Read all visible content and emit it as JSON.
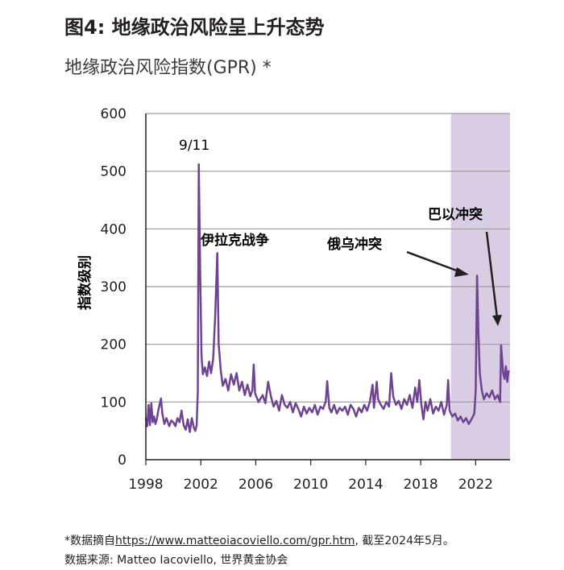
{
  "header": {
    "title": "图4: 地缘政治风险呈上升态势",
    "subtitle": "地缘政治风险指数(GPR) *"
  },
  "footer": {
    "note_prefix": "*数据摘自",
    "note_link": "https://www.matteoiacoviello.com/gpr.htm",
    "note_suffix": ", 截至2024年5月。",
    "source": "数据来源: Matteo Iacoviello, 世界黄金协会"
  },
  "colors": {
    "line": "#6e4391",
    "shade": "#d9cde3",
    "grid": "#9a9a9a",
    "axis": "#231f20",
    "text": "#231f20"
  },
  "chart_data": {
    "type": "line",
    "ylabel": "指数级别",
    "xlabel": "",
    "xlim": [
      1998,
      2024.5
    ],
    "ylim": [
      0,
      600
    ],
    "yticks": [
      0,
      100,
      200,
      300,
      400,
      500,
      600
    ],
    "xticks": [
      1998,
      2002,
      2006,
      2010,
      2014,
      2018,
      2022
    ],
    "grid": "horizontal",
    "shaded_region": [
      2020.2,
      2024.5
    ],
    "series": [
      {
        "values": [
          [
            1998.0,
            72
          ],
          [
            1998.1,
            58
          ],
          [
            1998.2,
            95
          ],
          [
            1998.3,
            60
          ],
          [
            1998.4,
            98
          ],
          [
            1998.5,
            65
          ],
          [
            1998.6,
            75
          ],
          [
            1998.7,
            62
          ],
          [
            1998.8,
            70
          ],
          [
            1998.9,
            85
          ],
          [
            1999.1,
            106
          ],
          [
            1999.2,
            80
          ],
          [
            1999.35,
            62
          ],
          [
            1999.5,
            72
          ],
          [
            1999.7,
            58
          ],
          [
            1999.85,
            68
          ],
          [
            2000.0,
            65
          ],
          [
            2000.15,
            58
          ],
          [
            2000.3,
            72
          ],
          [
            2000.45,
            65
          ],
          [
            2000.6,
            85
          ],
          [
            2000.75,
            60
          ],
          [
            2000.9,
            52
          ],
          [
            2001.05,
            70
          ],
          [
            2001.2,
            48
          ],
          [
            2001.35,
            72
          ],
          [
            2001.5,
            55
          ],
          [
            2001.6,
            50
          ],
          [
            2001.7,
            60
          ],
          [
            2001.78,
            118
          ],
          [
            2001.85,
            512
          ],
          [
            2001.95,
            330
          ],
          [
            2002.05,
            180
          ],
          [
            2002.15,
            148
          ],
          [
            2002.3,
            160
          ],
          [
            2002.45,
            145
          ],
          [
            2002.6,
            170
          ],
          [
            2002.75,
            150
          ],
          [
            2002.9,
            175
          ],
          [
            2003.05,
            250
          ],
          [
            2003.2,
            358
          ],
          [
            2003.3,
            200
          ],
          [
            2003.45,
            155
          ],
          [
            2003.6,
            128
          ],
          [
            2003.8,
            140
          ],
          [
            2004.0,
            120
          ],
          [
            2004.2,
            148
          ],
          [
            2004.4,
            130
          ],
          [
            2004.6,
            150
          ],
          [
            2004.8,
            120
          ],
          [
            2005.0,
            135
          ],
          [
            2005.2,
            112
          ],
          [
            2005.4,
            130
          ],
          [
            2005.6,
            110
          ],
          [
            2005.75,
            120
          ],
          [
            2005.85,
            165
          ],
          [
            2005.95,
            115
          ],
          [
            2006.2,
            100
          ],
          [
            2006.5,
            112
          ],
          [
            2006.7,
            98
          ],
          [
            2006.9,
            135
          ],
          [
            2007.1,
            110
          ],
          [
            2007.3,
            92
          ],
          [
            2007.5,
            102
          ],
          [
            2007.7,
            85
          ],
          [
            2007.9,
            112
          ],
          [
            2008.1,
            95
          ],
          [
            2008.3,
            90
          ],
          [
            2008.5,
            100
          ],
          [
            2008.7,
            82
          ],
          [
            2008.9,
            98
          ],
          [
            2009.1,
            88
          ],
          [
            2009.3,
            75
          ],
          [
            2009.5,
            92
          ],
          [
            2009.7,
            80
          ],
          [
            2009.9,
            90
          ],
          [
            2010.1,
            82
          ],
          [
            2010.3,
            95
          ],
          [
            2010.5,
            78
          ],
          [
            2010.7,
            92
          ],
          [
            2010.9,
            88
          ],
          [
            2011.1,
            102
          ],
          [
            2011.2,
            136
          ],
          [
            2011.35,
            90
          ],
          [
            2011.5,
            82
          ],
          [
            2011.7,
            95
          ],
          [
            2011.9,
            80
          ],
          [
            2012.1,
            90
          ],
          [
            2012.3,
            85
          ],
          [
            2012.5,
            92
          ],
          [
            2012.7,
            78
          ],
          [
            2012.9,
            95
          ],
          [
            2013.1,
            88
          ],
          [
            2013.3,
            75
          ],
          [
            2013.5,
            90
          ],
          [
            2013.7,
            82
          ],
          [
            2013.9,
            95
          ],
          [
            2014.1,
            85
          ],
          [
            2014.3,
            100
          ],
          [
            2014.5,
            130
          ],
          [
            2014.6,
            90
          ],
          [
            2014.8,
            135
          ],
          [
            2014.9,
            105
          ],
          [
            2015.1,
            95
          ],
          [
            2015.3,
            88
          ],
          [
            2015.5,
            100
          ],
          [
            2015.7,
            92
          ],
          [
            2015.85,
            150
          ],
          [
            2016.0,
            110
          ],
          [
            2016.2,
            95
          ],
          [
            2016.4,
            102
          ],
          [
            2016.6,
            88
          ],
          [
            2016.8,
            105
          ],
          [
            2017.0,
            95
          ],
          [
            2017.2,
            112
          ],
          [
            2017.4,
            90
          ],
          [
            2017.6,
            125
          ],
          [
            2017.75,
            100
          ],
          [
            2017.9,
            138
          ],
          [
            2018.05,
            95
          ],
          [
            2018.2,
            70
          ],
          [
            2018.35,
            100
          ],
          [
            2018.5,
            85
          ],
          [
            2018.7,
            105
          ],
          [
            2018.9,
            80
          ],
          [
            2019.1,
            92
          ],
          [
            2019.3,
            85
          ],
          [
            2019.5,
            100
          ],
          [
            2019.7,
            78
          ],
          [
            2019.9,
            95
          ],
          [
            2020.0,
            138
          ],
          [
            2020.1,
            85
          ],
          [
            2020.3,
            75
          ],
          [
            2020.5,
            80
          ],
          [
            2020.7,
            68
          ],
          [
            2020.9,
            75
          ],
          [
            2021.1,
            65
          ],
          [
            2021.3,
            72
          ],
          [
            2021.5,
            62
          ],
          [
            2021.7,
            70
          ],
          [
            2021.9,
            80
          ],
          [
            2022.0,
            120
          ],
          [
            2022.1,
            319
          ],
          [
            2022.2,
            220
          ],
          [
            2022.3,
            150
          ],
          [
            2022.45,
            120
          ],
          [
            2022.6,
            105
          ],
          [
            2022.8,
            115
          ],
          [
            2023.0,
            108
          ],
          [
            2023.2,
            120
          ],
          [
            2023.4,
            105
          ],
          [
            2023.6,
            112
          ],
          [
            2023.78,
            100
          ],
          [
            2023.85,
            198
          ],
          [
            2024.0,
            150
          ],
          [
            2024.1,
            140
          ],
          [
            2024.2,
            162
          ],
          [
            2024.3,
            135
          ],
          [
            2024.4,
            155
          ]
        ]
      }
    ],
    "annotations": [
      {
        "text": "9/11",
        "x": 2001.85,
        "y": 512
      },
      {
        "text": "伊拉克战争",
        "x": 2003.2,
        "y": 358
      },
      {
        "text": "俄乌冲突",
        "x": 2022.1,
        "y": 319
      },
      {
        "text": "巴以冲突",
        "x": 2023.85,
        "y": 198
      }
    ]
  }
}
